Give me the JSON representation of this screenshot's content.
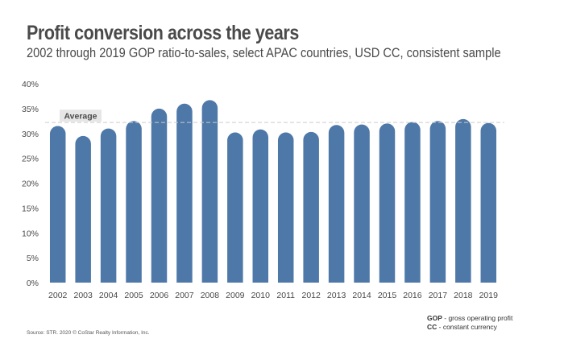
{
  "title": "Profit conversion across the years",
  "subtitle": "2002 through 2019 GOP ratio-to-sales, select APAC countries, USD CC, consistent sample",
  "colors": {
    "bar": "#4e78a8",
    "average_line": "#cccccc",
    "average_label_bg": "#e6e6e6"
  },
  "chart_data": {
    "type": "bar",
    "title": "Profit conversion across the years",
    "subtitle": "2002 through 2019 GOP ratio-to-sales, select APAC countries, USD CC, consistent sample",
    "xlabel": "",
    "ylabel": "",
    "categories": [
      "2002",
      "2003",
      "2004",
      "2005",
      "2006",
      "2007",
      "2008",
      "2009",
      "2010",
      "2011",
      "2012",
      "2013",
      "2014",
      "2015",
      "2016",
      "2017",
      "2018",
      "2019"
    ],
    "values": [
      31.5,
      29.5,
      31.0,
      32.5,
      35.0,
      36.0,
      36.7,
      30.2,
      30.8,
      30.2,
      30.3,
      31.7,
      31.8,
      32.0,
      32.3,
      32.5,
      32.9,
      32.1
    ],
    "ylim": [
      0,
      40
    ],
    "yticks": [
      0,
      5,
      10,
      15,
      20,
      25,
      30,
      35,
      40
    ],
    "ytick_suffix": "%",
    "average": {
      "label": "Average",
      "value": 32.2
    },
    "grid": false
  },
  "legend": {
    "gop_abbr": "GOP",
    "gop_text": " - gross operating profit",
    "cc_abbr": "CC",
    "cc_text": " - constant currency"
  },
  "source": "Source: STR. 2020 © CoStar Realty Information, Inc."
}
